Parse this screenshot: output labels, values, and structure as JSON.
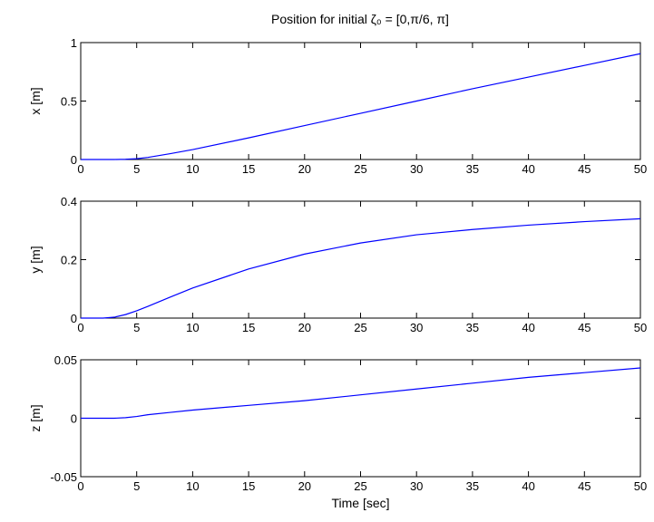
{
  "chart_data": {
    "type": "line",
    "title": "Position for initial ζ₀ = [0,π/6, π]",
    "x_ticks": [
      0,
      5,
      10,
      15,
      20,
      25,
      30,
      35,
      40,
      45,
      50
    ],
    "line_color": "#0000ff",
    "grid": false,
    "subplots": [
      {
        "name": "x",
        "ylabel": "x [m]",
        "xlabel": "",
        "xlim": [
          0,
          50
        ],
        "ylim": [
          0,
          1
        ],
        "y_ticks": [
          0,
          0.5,
          1
        ],
        "y_tick_labels": [
          "0",
          "0.5",
          "1"
        ],
        "x": [
          0,
          2,
          3,
          4,
          5,
          6,
          8,
          10,
          15,
          20,
          25,
          30,
          35,
          40,
          45,
          50
        ],
        "y": [
          0,
          0,
          0,
          0.002,
          0.007,
          0.018,
          0.05,
          0.085,
          0.185,
          0.29,
          0.395,
          0.5,
          0.605,
          0.705,
          0.805,
          0.905
        ]
      },
      {
        "name": "y",
        "ylabel": "y [m]",
        "xlabel": "",
        "xlim": [
          0,
          50
        ],
        "ylim": [
          0,
          0.4
        ],
        "y_ticks": [
          0,
          0.2,
          0.4
        ],
        "y_tick_labels": [
          "0",
          "0.2",
          "0.4"
        ],
        "x": [
          0,
          2,
          3,
          4,
          5,
          6,
          8,
          10,
          15,
          20,
          25,
          30,
          35,
          40,
          45,
          50
        ],
        "y": [
          0,
          0,
          0.003,
          0.012,
          0.025,
          0.04,
          0.072,
          0.103,
          0.168,
          0.219,
          0.257,
          0.285,
          0.303,
          0.318,
          0.33,
          0.34
        ]
      },
      {
        "name": "z",
        "ylabel": "z [m]",
        "xlabel": "Time [sec]",
        "xlim": [
          0,
          50
        ],
        "ylim": [
          -0.05,
          0.05
        ],
        "y_ticks": [
          -0.05,
          0,
          0.05
        ],
        "y_tick_labels": [
          "-0.05",
          "0",
          "0.05"
        ],
        "x": [
          0,
          2,
          3,
          4,
          5,
          6,
          8,
          10,
          15,
          20,
          25,
          30,
          35,
          40,
          45,
          50
        ],
        "y": [
          0,
          0,
          0,
          0.0005,
          0.0015,
          0.003,
          0.005,
          0.007,
          0.011,
          0.015,
          0.02,
          0.025,
          0.03,
          0.035,
          0.039,
          0.043
        ]
      }
    ]
  }
}
